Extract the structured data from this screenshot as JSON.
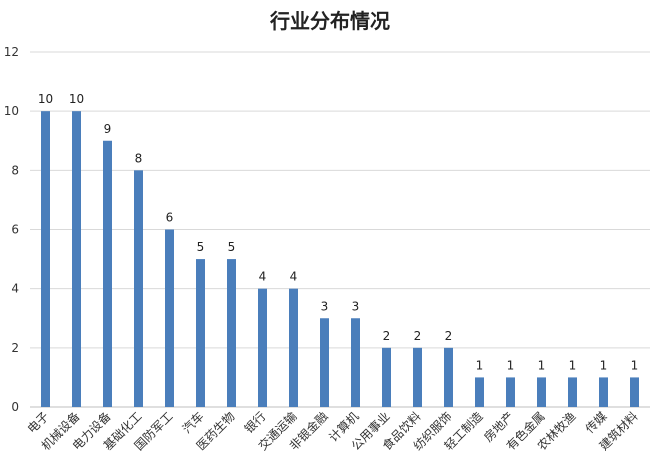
{
  "chart_data": {
    "type": "bar",
    "title": "行业分布情况",
    "xlabel": "",
    "ylabel": "",
    "ylim": [
      0,
      12
    ],
    "yticks": [
      0,
      2,
      4,
      6,
      8,
      10,
      12
    ],
    "grid": true,
    "legend": "none",
    "bar_color": "#4a7ebb",
    "categories": [
      "电子",
      "机械设备",
      "电力设备",
      "基础化工",
      "国防军工",
      "汽车",
      "医药生物",
      "银行",
      "交通运输",
      "非银金融",
      "计算机",
      "公用事业",
      "食品饮料",
      "纺织服饰",
      "轻工制造",
      "房地产",
      "有色金属",
      "农林牧渔",
      "传媒",
      "建筑材料"
    ],
    "values": [
      10,
      10,
      9,
      8,
      6,
      5,
      5,
      4,
      4,
      3,
      3,
      2,
      2,
      2,
      1,
      1,
      1,
      1,
      1,
      1
    ]
  }
}
